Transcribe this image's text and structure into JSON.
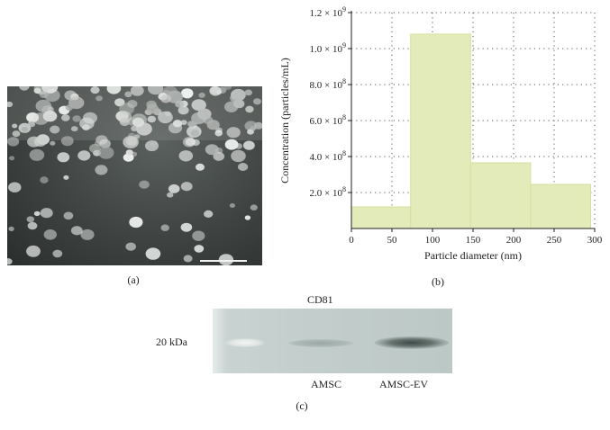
{
  "panel_a": {
    "caption": "(a)"
  },
  "panel_b": {
    "caption": "(b)",
    "chart_data": {
      "type": "bar",
      "bins": [
        [
          0,
          73
        ],
        [
          73,
          147
        ],
        [
          147,
          221
        ],
        [
          221,
          295
        ]
      ],
      "values": [
        120000000.0,
        1080000000.0,
        365000000.0,
        245000000.0
      ],
      "xlabel": "Particle diameter (nm)",
      "ylabel": "Concentration (particles/mL)",
      "xlim": [
        0,
        300
      ],
      "ylim": [
        0,
        1200000000.0
      ],
      "x_ticks": [
        0,
        50,
        100,
        150,
        200,
        250,
        300
      ],
      "y_ticks": [
        {
          "value": 200000000.0,
          "mantissa": "2.0",
          "exp": "8"
        },
        {
          "value": 400000000.0,
          "mantissa": "4.0",
          "exp": "8"
        },
        {
          "value": 600000000.0,
          "mantissa": "6.0",
          "exp": "8"
        },
        {
          "value": 800000000.0,
          "mantissa": "8.0",
          "exp": "8"
        },
        {
          "value": 1000000000.0,
          "mantissa": "1.0",
          "exp": "9"
        },
        {
          "value": 1200000000.0,
          "mantissa": "1.2",
          "exp": "9"
        }
      ],
      "grid": true,
      "bar_color": "#e4ebba"
    }
  },
  "panel_c": {
    "caption": "(c)",
    "marker_label": "CD81",
    "size_label": "20 kDa",
    "lane_labels": [
      "AMSC",
      "AMSC-EV"
    ]
  }
}
